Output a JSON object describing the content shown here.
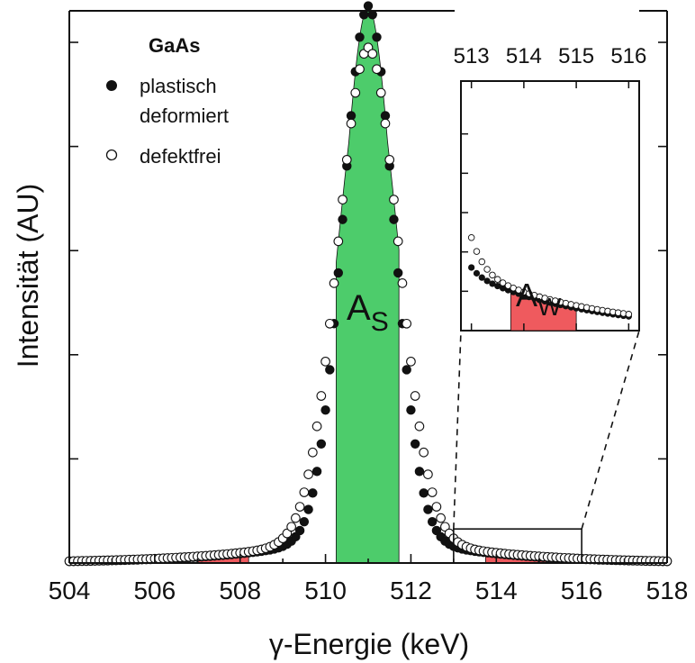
{
  "chart_data": {
    "type": "scatter",
    "xlabel": "γ-Energie (keV)",
    "ylabel": "Intensität (AU)",
    "xlim": [
      504,
      518
    ],
    "ylim": [
      0,
      1.0
    ],
    "x_ticks": [
      504,
      506,
      508,
      510,
      512,
      514,
      516,
      518
    ],
    "y_tick_values": [
      0.2,
      0.4,
      0.6,
      0.8,
      1.0
    ],
    "grid": false,
    "legend": {
      "position": "top-left",
      "title": "GaAs",
      "entries": [
        {
          "label_line1": "plastisch",
          "label_line2": "deformiert",
          "marker": "filled-circle"
        },
        {
          "label": "defektfrei",
          "marker": "open-circle"
        }
      ]
    },
    "series": [
      {
        "name": "plastisch deformiert",
        "marker": "filled",
        "peak_x": 511.0,
        "peak_y": 1.0,
        "sigma": 0.6,
        "tail": 0.07,
        "tail_width": 2.2
      },
      {
        "name": "defektfrei",
        "marker": "open",
        "peak_x": 511.0,
        "peak_y": 0.92,
        "sigma": 0.71,
        "tail": 0.07,
        "tail_width": 2.35
      }
    ],
    "x_start": 504.0,
    "x_end": 518.0,
    "x_step": 0.1,
    "shaded_regions": [
      {
        "label": "A",
        "label_sub": "S",
        "x_start": 510.25,
        "x_end": 511.72,
        "color": "#4dcc6b"
      },
      {
        "label": "",
        "x_start": 507.0,
        "x_end": 508.2,
        "color": "#ef5a5e"
      },
      {
        "label": "",
        "x_start": 513.75,
        "x_end": 516.0,
        "color": "#ef5a5e"
      }
    ],
    "zoom_box": {
      "x_start": 513.0,
      "x_end": 516.0,
      "y_start": 0.0,
      "y_end": 0.1
    },
    "inset": {
      "xlim": [
        512.8,
        516.2
      ],
      "ylim": [
        0.0,
        0.12
      ],
      "x_ticks": [
        513,
        514,
        515,
        516
      ],
      "shaded_region": {
        "label": "A",
        "label_sub": "W",
        "x_start": 513.75,
        "x_end": 515.0,
        "color": "#ef5a5e"
      }
    }
  },
  "colors": {
    "green": "#4dcc6b",
    "red": "#ef5a5e",
    "axis": "#111111"
  }
}
